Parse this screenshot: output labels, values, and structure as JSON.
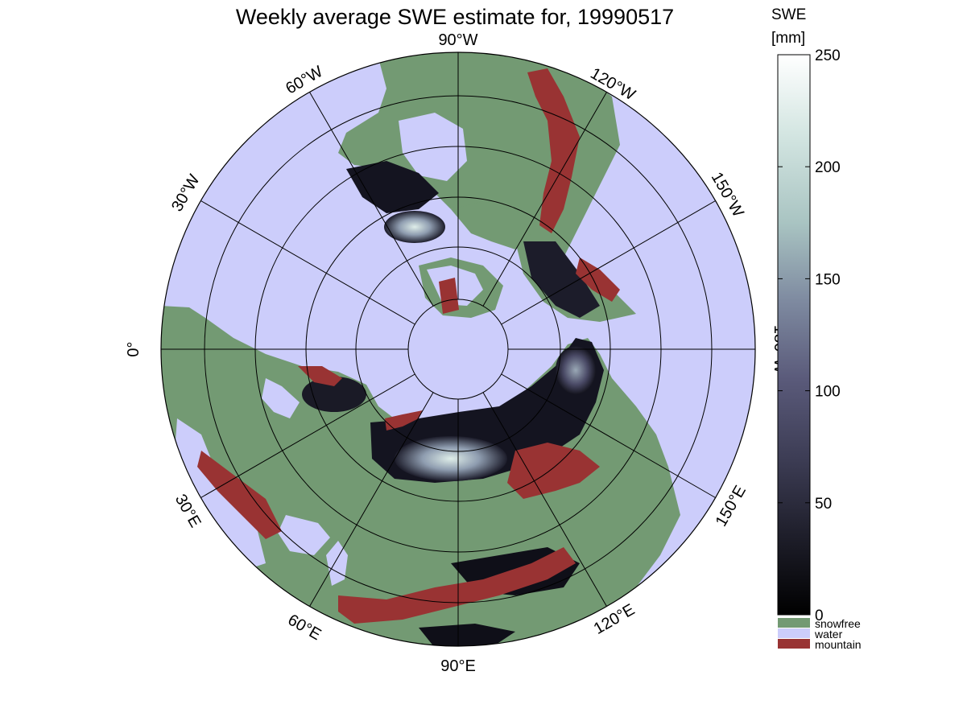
{
  "title": "Weekly average SWE estimate for, 19990517",
  "colorbar": {
    "title_line1": "SWE",
    "title_line2": "[mm]",
    "min": 0,
    "max": 250,
    "ticks": [
      "0",
      "50",
      "100",
      "150",
      "200",
      "250"
    ],
    "gradient": [
      "#000000",
      "#1e1e2a",
      "#3d3d55",
      "#5a5a7a",
      "#7e8aa0",
      "#a9c4c2",
      "#d4e6e2",
      "#ffffff"
    ]
  },
  "categories": [
    {
      "label": "snowfree",
      "color": "#739a73"
    },
    {
      "label": "water",
      "color": "#cccdfb"
    },
    {
      "label": "mountain",
      "color": "#993333"
    }
  ],
  "longitude_labels": [
    "90°W",
    "120°W",
    "150°W",
    "180°W",
    "150°E",
    "120°E",
    "90°E",
    "60°E",
    "30°E",
    "0°",
    "30°W",
    "60°W"
  ],
  "colors": {
    "ocean": "#cccdfb",
    "land": "#739a73",
    "mountain": "#993333",
    "snow_dark": "#141420",
    "grid": "#000000"
  }
}
